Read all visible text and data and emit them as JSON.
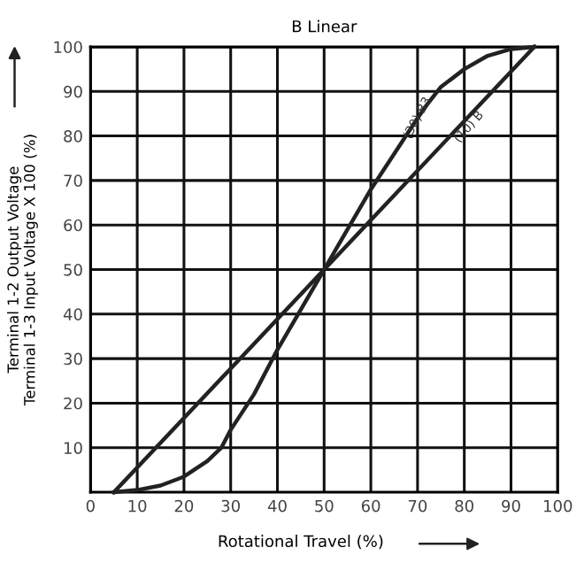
{
  "chart_data": {
    "type": "line",
    "title": "B Linear",
    "xlabel": "Rotational Travel (%)",
    "ylabel": "Terminal 1-2 Output Voltage\nTerminal 1-3 Input Voltage X 100 (%)",
    "series": [
      {
        "color": "#222222",
        "x": [
          5,
          95
        ],
        "values": [
          0,
          100
        ]
      },
      {
        "color": "#222222",
        "x": [
          5,
          10,
          15,
          20,
          25,
          28,
          30,
          35,
          40,
          45,
          50,
          55,
          60,
          65,
          70,
          72,
          75,
          80,
          85,
          90,
          95
        ],
        "values": [
          0,
          0.5,
          1.5,
          3.5,
          7,
          10,
          14,
          22,
          32,
          41,
          50,
          59,
          68,
          76,
          84,
          87,
          91,
          95,
          98,
          99.5,
          100
        ]
      }
    ],
    "annotations": [
      {
        "text": "(10) B",
        "x": 81,
        "y": 82
      },
      {
        "text": "(30) B3",
        "x": 70,
        "y": 84
      }
    ],
    "xlim": [
      0,
      100
    ],
    "ylim": [
      0,
      100
    ],
    "xticks": [
      0,
      10,
      20,
      30,
      40,
      50,
      60,
      70,
      80,
      90,
      100
    ],
    "yticks": [
      10,
      20,
      30,
      40,
      50,
      60,
      70,
      80,
      90,
      100
    ],
    "grid": true,
    "legend": false,
    "marker": "none",
    "line_style": "solid"
  }
}
